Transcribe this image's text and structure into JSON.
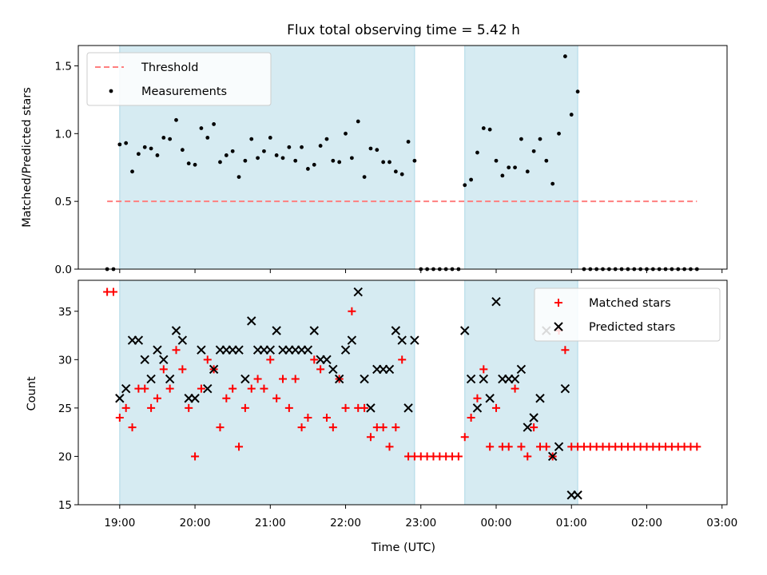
{
  "chart_data": [
    {
      "type": "scatter",
      "title": "Flux total observing time = 5.42 h",
      "xlabel": "",
      "ylabel": "Matched/Predicted stars",
      "xlim": [
        "18:27",
        "03:04"
      ],
      "ylim": [
        0,
        1.65
      ],
      "yticks": [
        0.0,
        0.5,
        1.0,
        1.5
      ],
      "yticklabels": [
        "0.0",
        "0.5",
        "1.0",
        "1.5"
      ],
      "xticklabels_visible": false,
      "legend": {
        "position": "top-left",
        "entries": [
          "Threshold",
          "Measurements"
        ]
      },
      "shaded_periods": [
        [
          "19:00",
          "22:55"
        ],
        [
          "23:35",
          "01:05"
        ]
      ],
      "threshold": {
        "name": "Threshold",
        "value": 0.5,
        "x_range": [
          "18:50",
          "02:40"
        ],
        "color": "#ff7f7f"
      },
      "series": [
        {
          "name": "Measurements",
          "color": "#000000",
          "x": [
            "18:50",
            "18:55",
            "19:00",
            "19:05",
            "19:10",
            "19:15",
            "19:20",
            "19:25",
            "19:30",
            "19:35",
            "19:40",
            "19:45",
            "19:50",
            "19:55",
            "20:00",
            "20:05",
            "20:10",
            "20:15",
            "20:20",
            "20:25",
            "20:30",
            "20:35",
            "20:40",
            "20:45",
            "20:50",
            "20:55",
            "21:00",
            "21:05",
            "21:10",
            "21:15",
            "21:20",
            "21:25",
            "21:30",
            "21:35",
            "21:40",
            "21:45",
            "21:50",
            "21:55",
            "22:00",
            "22:05",
            "22:10",
            "22:15",
            "22:20",
            "22:25",
            "22:30",
            "22:35",
            "22:40",
            "22:45",
            "22:50",
            "22:55",
            "23:00",
            "23:05",
            "23:10",
            "23:15",
            "23:20",
            "23:25",
            "23:30",
            "23:35",
            "23:40",
            "23:45",
            "23:50",
            "23:55",
            "00:00",
            "00:05",
            "00:10",
            "00:15",
            "00:20",
            "00:25",
            "00:30",
            "00:35",
            "00:40",
            "00:45",
            "00:50",
            "00:55",
            "01:00",
            "01:05",
            "01:10",
            "01:15",
            "01:20",
            "01:25",
            "01:30",
            "01:35",
            "01:40",
            "01:45",
            "01:50",
            "01:55",
            "02:00",
            "02:05",
            "02:10",
            "02:15",
            "02:20",
            "02:25",
            "02:30",
            "02:35",
            "02:40"
          ],
          "y": [
            0,
            0,
            0.92,
            0.93,
            0.72,
            0.85,
            0.9,
            0.89,
            0.84,
            0.97,
            0.96,
            1.1,
            0.88,
            0.78,
            0.77,
            1.04,
            0.97,
            1.07,
            0.79,
            0.84,
            0.87,
            0.68,
            0.8,
            0.96,
            0.82,
            0.87,
            0.97,
            0.84,
            0.82,
            0.9,
            0.8,
            0.9,
            0.74,
            0.77,
            0.91,
            0.96,
            0.8,
            0.79,
            1.0,
            0.82,
            1.09,
            0.68,
            0.89,
            0.88,
            0.79,
            0.79,
            0.72,
            0.7,
            0.94,
            0.8,
            0,
            0,
            0,
            0,
            0,
            0,
            0,
            0.62,
            0.66,
            0.86,
            1.04,
            1.03,
            0.8,
            0.69,
            0.75,
            0.75,
            0.96,
            0.72,
            0.87,
            0.96,
            0.8,
            0.63,
            1.0,
            1.57,
            1.14,
            1.31,
            0,
            0,
            0,
            0,
            0,
            0,
            0,
            0,
            0,
            0,
            0,
            0,
            0,
            0,
            0,
            0,
            0,
            0,
            0
          ]
        }
      ]
    },
    {
      "type": "scatter",
      "title": "",
      "xlabel": "Time (UTC)",
      "ylabel": "Count",
      "xlim": [
        "18:27",
        "03:04"
      ],
      "ylim": [
        15,
        38.2
      ],
      "yticks": [
        15,
        20,
        25,
        30,
        35
      ],
      "yticklabels": [
        "15",
        "20",
        "25",
        "30",
        "35"
      ],
      "xticks": [
        "19:00",
        "20:00",
        "21:00",
        "22:00",
        "23:00",
        "00:00",
        "01:00",
        "02:00",
        "03:00"
      ],
      "xticklabels": [
        "19:00",
        "20:00",
        "21:00",
        "22:00",
        "23:00",
        "00:00",
        "01:00",
        "02:00",
        "03:00"
      ],
      "legend": {
        "position": "top-right",
        "entries": [
          "Matched stars",
          "Predicted stars"
        ]
      },
      "shaded_periods": [
        [
          "19:00",
          "22:55"
        ],
        [
          "23:35",
          "01:05"
        ]
      ],
      "series": [
        {
          "name": "Matched stars",
          "marker": "plus",
          "color": "#ff0000",
          "x": [
            "18:50",
            "18:55",
            "19:00",
            "19:05",
            "19:10",
            "19:15",
            "19:20",
            "19:25",
            "19:30",
            "19:35",
            "19:40",
            "19:45",
            "19:50",
            "19:55",
            "20:00",
            "20:05",
            "20:10",
            "20:15",
            "20:20",
            "20:25",
            "20:30",
            "20:35",
            "20:40",
            "20:45",
            "20:50",
            "20:55",
            "21:00",
            "21:05",
            "21:10",
            "21:15",
            "21:20",
            "21:25",
            "21:30",
            "21:35",
            "21:40",
            "21:45",
            "21:50",
            "21:55",
            "22:00",
            "22:05",
            "22:10",
            "22:15",
            "22:20",
            "22:25",
            "22:30",
            "22:35",
            "22:40",
            "22:45",
            "22:50",
            "22:55",
            "23:00",
            "23:05",
            "23:10",
            "23:15",
            "23:20",
            "23:25",
            "23:30",
            "23:35",
            "23:40",
            "23:45",
            "23:50",
            "23:55",
            "00:00",
            "00:05",
            "00:10",
            "00:15",
            "00:20",
            "00:25",
            "00:30",
            "00:35",
            "00:40",
            "00:45",
            "00:50",
            "00:55",
            "01:00",
            "01:05",
            "01:10",
            "01:15",
            "01:20",
            "01:25",
            "01:30",
            "01:35",
            "01:40",
            "01:45",
            "01:50",
            "01:55",
            "02:00",
            "02:05",
            "02:10",
            "02:15",
            "02:20",
            "02:25",
            "02:30",
            "02:35",
            "02:40"
          ],
          "y": [
            37,
            37,
            24,
            25,
            23,
            27,
            27,
            25,
            26,
            29,
            27,
            31,
            29,
            25,
            20,
            27,
            30,
            29,
            23,
            26,
            27,
            21,
            25,
            27,
            28,
            27,
            30,
            26,
            28,
            25,
            28,
            23,
            24,
            30,
            29,
            24,
            23,
            28,
            25,
            35,
            25,
            25,
            22,
            23,
            23,
            21,
            23,
            30,
            20,
            20,
            20,
            20,
            20,
            20,
            20,
            20,
            20,
            22,
            24,
            26,
            29,
            21,
            25,
            21,
            21,
            27,
            21,
            20,
            23,
            21,
            21,
            20,
            33,
            31,
            21,
            21,
            21,
            21,
            21,
            21,
            21,
            21,
            21,
            21,
            21,
            21,
            21,
            21,
            21,
            21,
            21,
            21,
            21,
            21,
            21
          ]
        },
        {
          "name": "Predicted stars",
          "marker": "x",
          "color": "#000000",
          "x": [
            "19:00",
            "19:05",
            "19:10",
            "19:15",
            "19:20",
            "19:25",
            "19:30",
            "19:35",
            "19:40",
            "19:45",
            "19:50",
            "19:55",
            "20:00",
            "20:05",
            "20:10",
            "20:15",
            "20:20",
            "20:25",
            "20:30",
            "20:35",
            "20:40",
            "20:45",
            "20:50",
            "20:55",
            "21:00",
            "21:05",
            "21:10",
            "21:15",
            "21:20",
            "21:25",
            "21:30",
            "21:35",
            "21:40",
            "21:45",
            "21:50",
            "21:55",
            "22:00",
            "22:05",
            "22:10",
            "22:15",
            "22:20",
            "22:25",
            "22:30",
            "22:35",
            "22:40",
            "22:45",
            "22:50",
            "22:55",
            "23:35",
            "23:40",
            "23:45",
            "23:50",
            "23:55",
            "00:00",
            "00:05",
            "00:10",
            "00:15",
            "00:20",
            "00:25",
            "00:30",
            "00:35",
            "00:40",
            "00:45",
            "00:50",
            "00:55",
            "01:00",
            "01:05"
          ],
          "y": [
            26,
            27,
            32,
            32,
            30,
            28,
            31,
            30,
            28,
            33,
            32,
            26,
            26,
            31,
            27,
            29,
            31,
            31,
            31,
            31,
            28,
            34,
            31,
            31,
            31,
            33,
            31,
            31,
            31,
            31,
            31,
            33,
            30,
            30,
            29,
            28,
            31,
            32,
            37,
            28,
            25,
            29,
            29,
            29,
            33,
            32,
            25,
            32,
            33,
            28,
            25,
            28,
            26,
            36,
            28,
            28,
            28,
            29,
            23,
            24,
            26,
            33,
            20,
            21,
            27,
            16,
            16
          ]
        }
      ]
    }
  ]
}
